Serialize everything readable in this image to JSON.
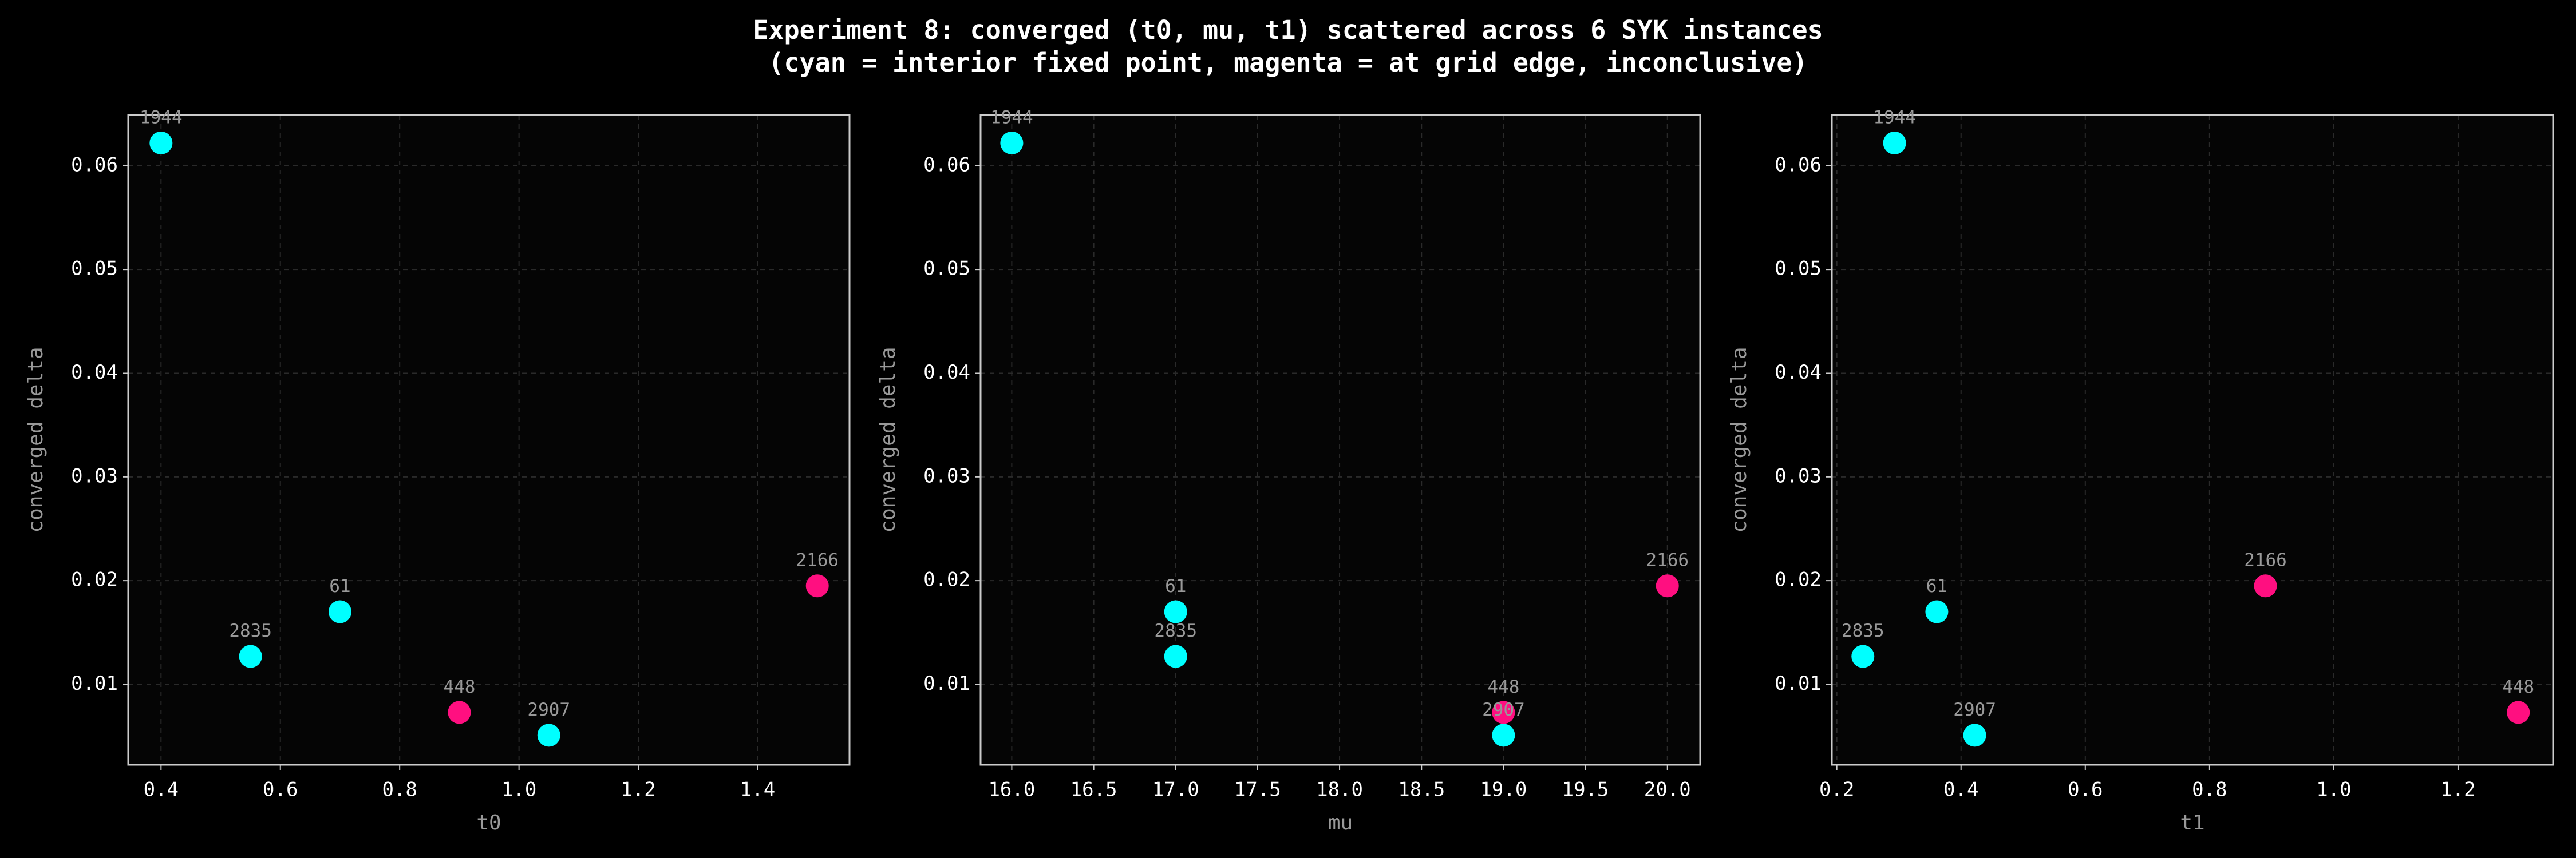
{
  "title": "Experiment 8: converged (t0, mu, t1) scattered across 6 SYK instances",
  "subtitle": "(cyan = interior fixed point, magenta = at grid edge, inconclusive)",
  "chart_data": [
    {
      "type": "scatter",
      "xlabel": "t0",
      "ylabel": "converged delta",
      "x": [
        0.4,
        0.55,
        0.7,
        0.9,
        1.05,
        1.5
      ],
      "y": [
        0.0622,
        0.0127,
        0.017,
        0.0073,
        0.0051,
        0.0195
      ],
      "labels": [
        "1944",
        "2835",
        "61",
        "448",
        "2907",
        "2166"
      ],
      "colors": [
        "#00ffff",
        "#00ffff",
        "#00ffff",
        "#ff0f80",
        "#00ffff",
        "#ff0f80"
      ],
      "xlim": [
        0.345,
        1.554
      ],
      "ylim": [
        0.00225,
        0.0649
      ],
      "xticks": [
        0.4,
        0.6,
        0.8,
        {
          "value": 1.0,
          "label": "1.0"
        },
        1.2,
        1.4
      ],
      "yticks": [
        0.01,
        0.02,
        0.03,
        0.04,
        0.05,
        0.06
      ],
      "grid": true
    },
    {
      "type": "scatter",
      "xlabel": "mu",
      "ylabel": "converged delta",
      "x": [
        16,
        17,
        17,
        19,
        19,
        20
      ],
      "y": [
        0.0622,
        0.017,
        0.0127,
        0.0073,
        0.0051,
        0.0195
      ],
      "labels": [
        "1944",
        "61",
        "2835",
        "448",
        "2907",
        "2166"
      ],
      "colors": [
        "#00ffff",
        "#00ffff",
        "#00ffff",
        "#ff0f80",
        "#00ffff",
        "#ff0f80"
      ],
      "xlim": [
        15.81,
        20.2
      ],
      "ylim": [
        0.00225,
        0.0649
      ],
      "xticks": [
        {
          "value": 16,
          "label": "16.0"
        },
        16.5,
        {
          "value": 17,
          "label": "17.0"
        },
        17.5,
        {
          "value": 18,
          "label": "18.0"
        },
        18.5,
        {
          "value": 19,
          "label": "19.0"
        },
        19.5,
        {
          "value": 20,
          "label": "20.0"
        }
      ],
      "yticks": [
        0.01,
        0.02,
        0.03,
        0.04,
        0.05,
        0.06
      ],
      "grid": true
    },
    {
      "type": "scatter",
      "xlabel": "t1",
      "ylabel": "converged delta",
      "x": [
        0.293,
        0.242,
        0.361,
        0.422,
        0.89,
        1.297
      ],
      "y": [
        0.0622,
        0.0127,
        0.017,
        0.0051,
        0.0195,
        0.0073
      ],
      "labels": [
        "1944",
        "2835",
        "61",
        "2907",
        "2166",
        "448"
      ],
      "colors": [
        "#00ffff",
        "#00ffff",
        "#00ffff",
        "#00ffff",
        "#ff0f80",
        "#ff0f80"
      ],
      "xlim": [
        0.192,
        1.353
      ],
      "ylim": [
        0.00225,
        0.0649
      ],
      "xticks": [
        0.2,
        0.4,
        0.6,
        0.8,
        {
          "value": 1.0,
          "label": "1.0"
        },
        1.2
      ],
      "yticks": [
        0.01,
        0.02,
        0.03,
        0.04,
        0.05,
        0.06
      ],
      "grid": true
    }
  ]
}
